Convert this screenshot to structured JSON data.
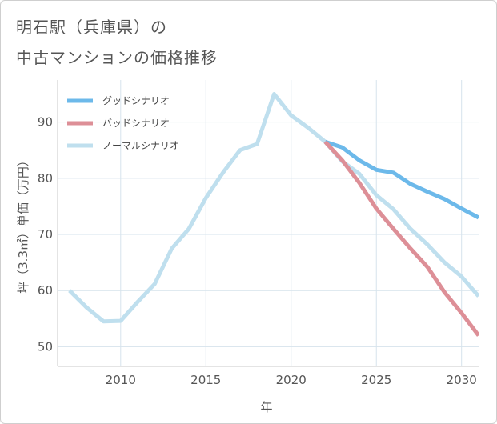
{
  "title_line1": "明石駅（兵庫県）の",
  "title_line2": "中古マンションの価格推移",
  "chart_data": {
    "type": "line",
    "xlabel": "年",
    "ylabel": "坪（3.3㎡）単価（万円）",
    "xlim": [
      2006.3,
      2031
    ],
    "ylim": [
      46.5,
      97.5
    ],
    "xticks": [
      2010,
      2015,
      2020,
      2025,
      2030
    ],
    "yticks": [
      50,
      60,
      70,
      80,
      90
    ],
    "grid": true,
    "legend_position": "top-left",
    "series": [
      {
        "name": "グッドシナリオ",
        "color": "#6cb9ea",
        "x": [
          2022,
          2023,
          2024,
          2025,
          2026,
          2027,
          2028,
          2029,
          2030,
          2031
        ],
        "y": [
          86.5,
          85.5,
          83.2,
          81.5,
          81.0,
          79.0,
          77.6,
          76.3,
          74.6,
          73.0
        ]
      },
      {
        "name": "バッドシナリオ",
        "color": "#dd8f97",
        "x": [
          2022,
          2023,
          2024,
          2025,
          2026,
          2027,
          2028,
          2029,
          2030,
          2031
        ],
        "y": [
          86.5,
          83.2,
          79.2,
          74.6,
          71.0,
          67.5,
          64.2,
          59.7,
          56.0,
          52.0
        ]
      },
      {
        "name": "ノーマルシナリオ",
        "color": "#bfdfee",
        "x": [
          2007,
          2008,
          2009,
          2010,
          2011,
          2012,
          2013,
          2014,
          2015,
          2016,
          2017,
          2018,
          2019,
          2020,
          2021,
          2022,
          2023,
          2024,
          2025,
          2026,
          2027,
          2028,
          2029,
          2030,
          2031
        ],
        "y": [
          60.0,
          57.0,
          54.5,
          54.6,
          58.0,
          61.2,
          67.5,
          71.0,
          76.5,
          81.0,
          85.0,
          86.1,
          95.0,
          91.2,
          89.0,
          86.5,
          83.0,
          80.8,
          77.0,
          74.5,
          71.0,
          68.2,
          65.0,
          62.5,
          59.0
        ]
      }
    ]
  }
}
